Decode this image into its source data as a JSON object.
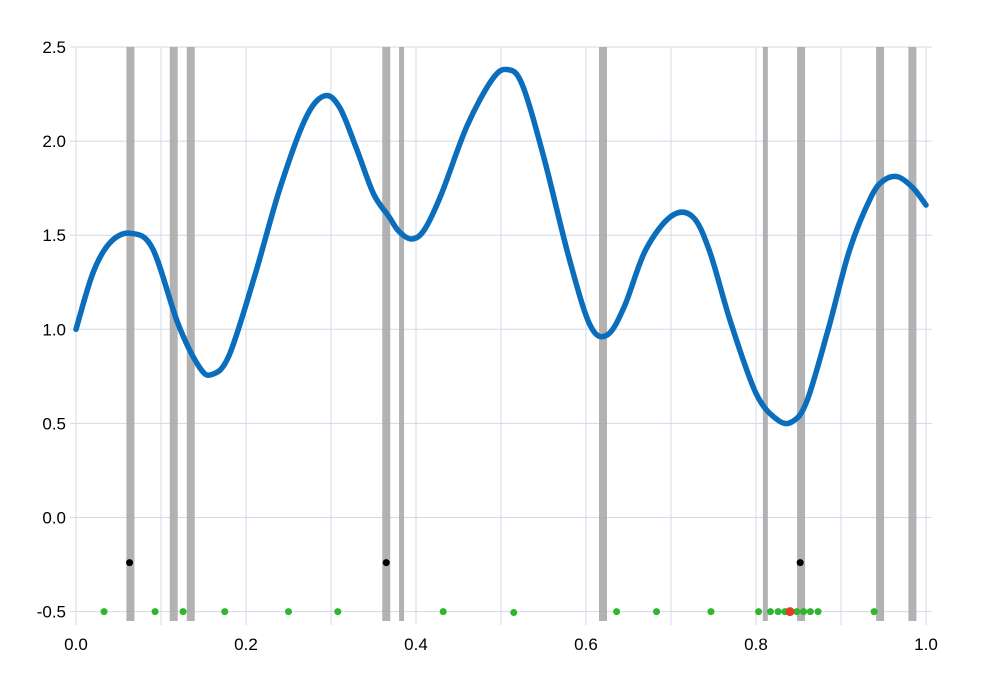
{
  "chart_data": {
    "type": "line",
    "title": "",
    "xlabel": "",
    "ylabel": "",
    "xlim": [
      0.0,
      1.0
    ],
    "ylim": [
      -0.55,
      2.5
    ],
    "grid": true,
    "x_ticks": [
      0.0,
      0.2,
      0.4,
      0.6,
      0.8,
      1.0
    ],
    "x_tick_labels": [
      "0.0",
      "0.2",
      "0.4",
      "0.6",
      "0.8",
      "1.0"
    ],
    "y_ticks": [
      -0.5,
      0.0,
      0.5,
      1.0,
      1.5,
      2.0,
      2.5
    ],
    "y_tick_labels": [
      "-0.5",
      "0.0",
      "0.5",
      "1.0",
      "1.5",
      "2.0",
      "2.5"
    ],
    "series": [
      {
        "type": "line",
        "color": "#0a6ebd",
        "x": [
          0.0,
          0.02,
          0.04,
          0.064,
          0.09,
          0.12,
          0.145,
          0.16,
          0.18,
          0.21,
          0.24,
          0.27,
          0.292,
          0.31,
          0.33,
          0.35,
          0.368,
          0.38,
          0.395,
          0.41,
          0.43,
          0.46,
          0.49,
          0.508,
          0.525,
          0.55,
          0.58,
          0.605,
          0.625,
          0.645,
          0.67,
          0.7,
          0.725,
          0.745,
          0.77,
          0.8,
          0.825,
          0.843,
          0.86,
          0.885,
          0.91,
          0.935,
          0.95,
          0.967,
          0.985,
          1.0
        ],
        "y": [
          1.0,
          1.3,
          1.46,
          1.51,
          1.43,
          1.03,
          0.8,
          0.76,
          0.86,
          1.28,
          1.75,
          2.12,
          2.24,
          2.18,
          1.96,
          1.72,
          1.6,
          1.52,
          1.48,
          1.53,
          1.72,
          2.08,
          2.33,
          2.38,
          2.3,
          1.92,
          1.38,
          1.02,
          0.97,
          1.12,
          1.42,
          1.6,
          1.6,
          1.42,
          1.04,
          0.66,
          0.52,
          0.51,
          0.62,
          1.0,
          1.42,
          1.7,
          1.79,
          1.81,
          1.75,
          1.66
        ]
      }
    ],
    "vertical_lines": [
      0.064,
      0.115,
      0.135,
      0.365,
      0.383,
      0.62,
      0.811,
      0.853,
      0.946,
      0.984
    ],
    "vertical_line_color": "#aaaaaa",
    "black_points": [
      {
        "x": 0.063,
        "y": -0.24
      },
      {
        "x": 0.365,
        "y": -0.24
      },
      {
        "x": 0.852,
        "y": -0.24
      }
    ],
    "green_points": [
      {
        "x": 0.033,
        "y": -0.5
      },
      {
        "x": 0.093,
        "y": -0.5
      },
      {
        "x": 0.126,
        "y": -0.5
      },
      {
        "x": 0.175,
        "y": -0.5
      },
      {
        "x": 0.25,
        "y": -0.5
      },
      {
        "x": 0.308,
        "y": -0.5
      },
      {
        "x": 0.432,
        "y": -0.5
      },
      {
        "x": 0.515,
        "y": -0.505
      },
      {
        "x": 0.636,
        "y": -0.5
      },
      {
        "x": 0.683,
        "y": -0.5
      },
      {
        "x": 0.747,
        "y": -0.5
      },
      {
        "x": 0.803,
        "y": -0.5
      },
      {
        "x": 0.817,
        "y": -0.5
      },
      {
        "x": 0.826,
        "y": -0.5
      },
      {
        "x": 0.834,
        "y": -0.5
      },
      {
        "x": 0.848,
        "y": -0.5
      },
      {
        "x": 0.856,
        "y": -0.5
      },
      {
        "x": 0.864,
        "y": -0.5
      },
      {
        "x": 0.873,
        "y": -0.5
      },
      {
        "x": 0.939,
        "y": -0.5
      }
    ],
    "red_points": [
      {
        "x": 0.84,
        "y": -0.5
      }
    ]
  }
}
